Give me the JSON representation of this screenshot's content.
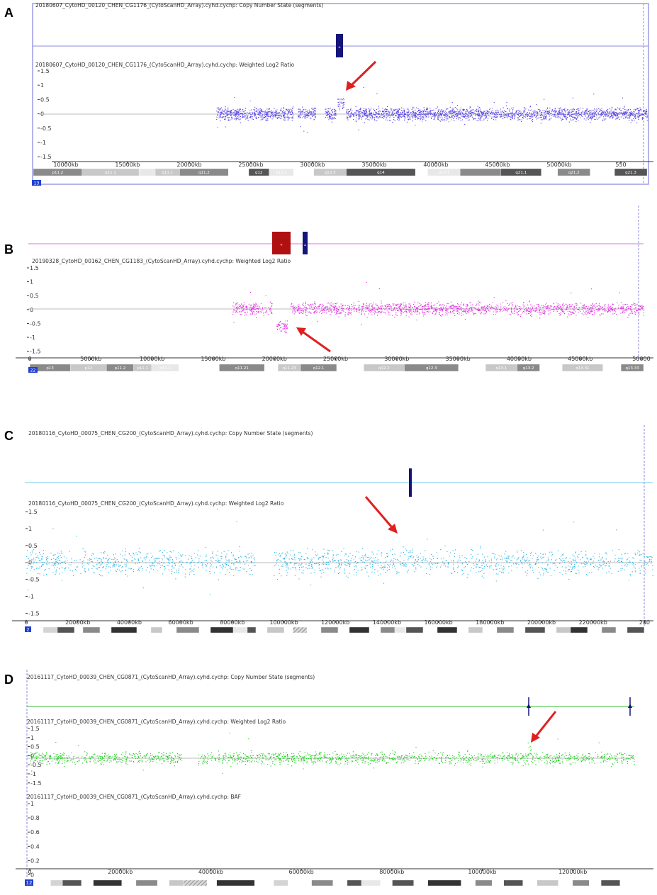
{
  "colors": {
    "A": "#5a45e6",
    "B": "#e030e0",
    "C": "#2ab4e8",
    "D": "#22d022",
    "arrow": "#e02020",
    "gain": "#14147a",
    "loss": "#b01010"
  },
  "panels": [
    {
      "id": "A",
      "letter": "A",
      "color_key": "A",
      "cn_title": "20180607_CytoHD_00120_CHEN_CG1176_(CytoScanHD_Array).cyhd.cychp: Copy Number State (segments)",
      "log2_title": "20180607_CytoHD_00120_CHEN_CG1176_(CytoScanHD_Array).cyhd.cychp: Weighted Log2 Ratio",
      "yticks": [
        "1.5",
        "1",
        "0.5",
        "0",
        "-0.5",
        "-1",
        "-1.5"
      ],
      "xticks": [
        "10000kb",
        "15000kb",
        "20000kb",
        "25000kb",
        "30000kb",
        "35000kb",
        "40000kb",
        "45000kb",
        "50000kb",
        "550"
      ],
      "chromosome": "13",
      "bands": [
        "p11.2",
        "p11.1",
        "q11.1",
        "q11.2",
        "q12",
        "q13.1",
        "q13.3",
        "q14",
        "q15.1",
        "q21.1",
        "q21.2",
        "q21.3"
      ]
    },
    {
      "id": "B",
      "letter": "B",
      "color_key": "B",
      "log2_title": "20190328_CytoHD_00162_CHEN_CG1183_(CytoScanHD_Array).cyhd.cychp: Weighted Log2 Ratio",
      "yticks": [
        "1.5",
        "1",
        "0.5",
        "0",
        "-0.5",
        "-1",
        "-1.5"
      ],
      "xticks": [
        "0",
        "5000kb",
        "10000kb",
        "15000kb",
        "20000kb",
        "25000kb",
        "30000kb",
        "35000kb",
        "40000kb",
        "45000kb",
        "50000"
      ],
      "chromosome": "22",
      "bands": [
        "p13",
        "p12",
        "p11.2",
        "p11.1",
        "q11.1",
        "q11.21",
        "q11.23",
        "q12.1",
        "q12.2",
        "q12.3",
        "q13.1",
        "q13.2",
        "q13.31",
        "q13.33"
      ]
    },
    {
      "id": "C",
      "letter": "C",
      "color_key": "C",
      "cn_title": "20180116_CytoHD_00075_CHEN_CG200_(CytoScanHD_Array).cyhd.cychp: Copy Number State (segments)",
      "log2_title": "20180116_CytoHD_00075_CHEN_CG200_(CytoScanHD_Array).cyhd.cychp: Weighted Log2 Ratio",
      "yticks": [
        "1.5",
        "1",
        "0.5",
        "0",
        "-0.5",
        "-1",
        "-1.5"
      ],
      "xticks": [
        "0",
        "20000kb",
        "40000kb",
        "60000kb",
        "80000kb",
        "100000kb",
        "120000kb",
        "140000kb",
        "160000kb",
        "180000kb",
        "200000kb",
        "220000kb",
        "240"
      ],
      "chromosome": "2"
    },
    {
      "id": "D",
      "letter": "D",
      "color_key": "D",
      "cn_title": "20161117_CytoHD_00039_CHEN_CG0871_(CytoScanHD_Array).cyhd.cychp: Copy Number State (segments)",
      "log2_title": "20161117_CytoHD_00039_CHEN_CG0871_(CytoScanHD_Array).cyhd.cychp: Weighted Log2 Ratio",
      "baf_title": "20161117_CytoHD_00039_CHEN_CG0871_(CytoScanHD_Array).cyhd.cychp: BAF",
      "yticks": [
        "1.5",
        "1",
        "0.5",
        "0",
        "-0.5",
        "-1",
        "-1.5"
      ],
      "baf_yticks": [
        "1",
        "0.8",
        "0.6",
        "0.4",
        "0.2",
        "0"
      ],
      "xticks": [
        "0",
        "20000kb",
        "40000kb",
        "60000kb",
        "80000kb",
        "100000kb",
        "120000kb"
      ],
      "chromosome": "12"
    }
  ]
}
